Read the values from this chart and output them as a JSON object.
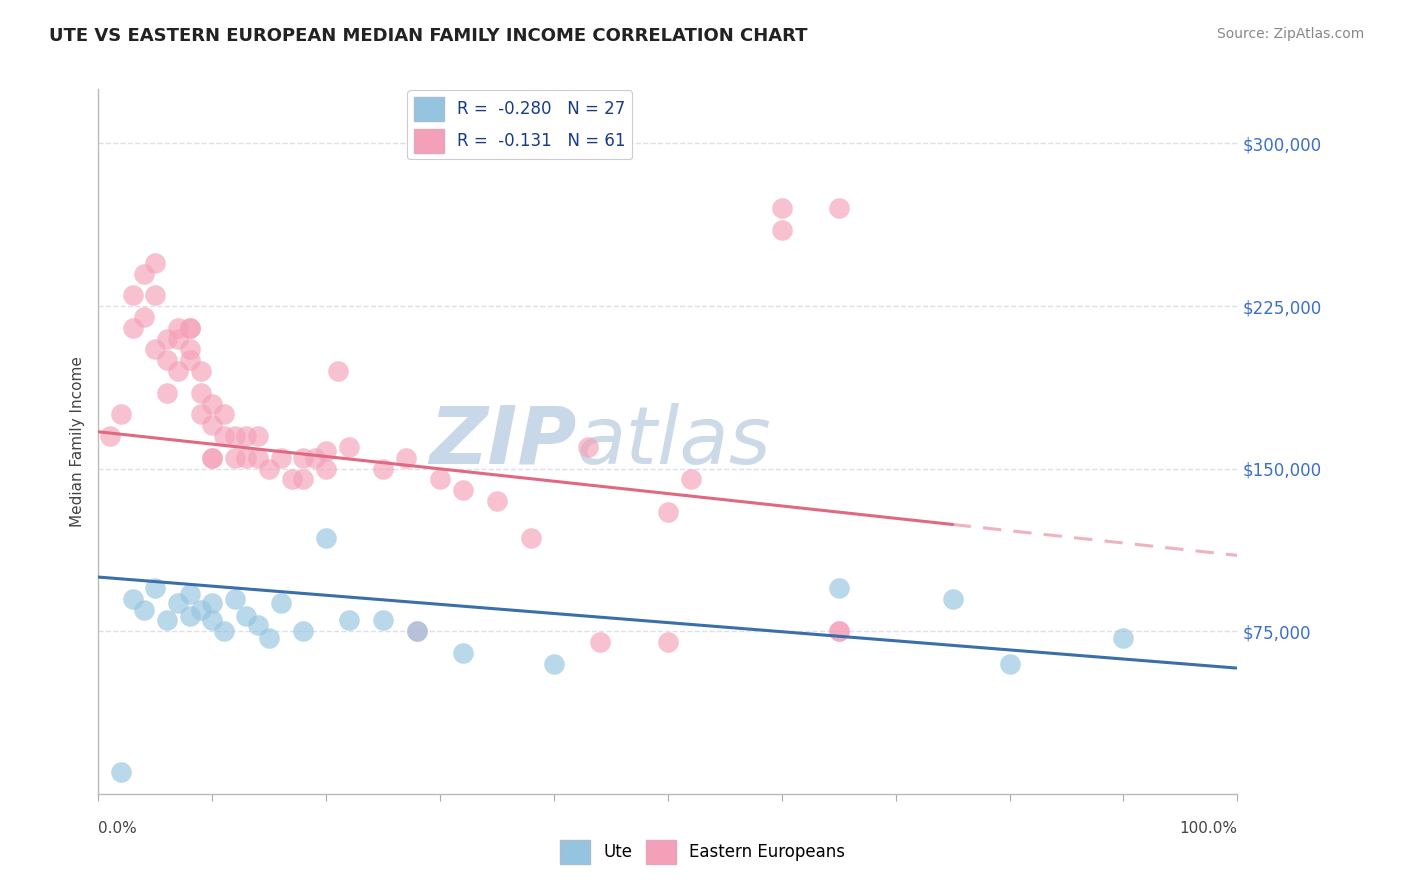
{
  "title": "UTE VS EASTERN EUROPEAN MEDIAN FAMILY INCOME CORRELATION CHART",
  "source": "Source: ZipAtlas.com",
  "ylabel": "Median Family Income",
  "yticks": [
    75000,
    150000,
    225000,
    300000
  ],
  "ytick_labels": [
    "$75,000",
    "$150,000",
    "$225,000",
    "$300,000"
  ],
  "ylim": [
    0,
    325000
  ],
  "xlim": [
    0,
    100
  ],
  "ute_color": "#94c4e0",
  "ee_color": "#f4a0b8",
  "ute_line_color": "#3a6faa",
  "ee_line_color": "#e06880",
  "ute_scatter_x": [
    2,
    3,
    4,
    5,
    6,
    7,
    8,
    8,
    9,
    10,
    10,
    11,
    12,
    13,
    14,
    15,
    16,
    18,
    20,
    22,
    25,
    28,
    32,
    40,
    65,
    75,
    80,
    90
  ],
  "ute_scatter_y": [
    10000,
    90000,
    85000,
    95000,
    80000,
    88000,
    82000,
    92000,
    85000,
    88000,
    80000,
    75000,
    90000,
    82000,
    78000,
    72000,
    88000,
    75000,
    118000,
    80000,
    80000,
    75000,
    65000,
    60000,
    95000,
    90000,
    60000,
    72000
  ],
  "ee_scatter_x": [
    1,
    2,
    3,
    3,
    4,
    4,
    5,
    5,
    5,
    6,
    6,
    6,
    7,
    7,
    7,
    8,
    8,
    8,
    8,
    9,
    9,
    9,
    10,
    10,
    10,
    10,
    11,
    11,
    12,
    12,
    13,
    13,
    14,
    14,
    15,
    16,
    17,
    18,
    18,
    19,
    20,
    20,
    21,
    22,
    25,
    27,
    28,
    30,
    32,
    35,
    38,
    43,
    44,
    50,
    50,
    52,
    60,
    60,
    65,
    65,
    65
  ],
  "ee_scatter_y": [
    165000,
    175000,
    230000,
    215000,
    240000,
    220000,
    205000,
    230000,
    245000,
    185000,
    200000,
    210000,
    215000,
    195000,
    210000,
    200000,
    215000,
    205000,
    215000,
    185000,
    195000,
    175000,
    180000,
    170000,
    155000,
    155000,
    165000,
    175000,
    155000,
    165000,
    155000,
    165000,
    155000,
    165000,
    150000,
    155000,
    145000,
    155000,
    145000,
    155000,
    150000,
    158000,
    195000,
    160000,
    150000,
    155000,
    75000,
    145000,
    140000,
    135000,
    118000,
    160000,
    70000,
    130000,
    70000,
    145000,
    260000,
    270000,
    270000,
    75000,
    75000
  ],
  "ute_trend_x0": 0,
  "ute_trend_y0": 100000,
  "ute_trend_x1": 100,
  "ute_trend_y1": 58000,
  "ee_trend_x0": 0,
  "ee_trend_y0": 167000,
  "ee_trend_x1": 100,
  "ee_trend_y1": 110000,
  "ee_trend_solid_end": 75,
  "background_color": "#ffffff",
  "grid_color": "#dde0ea",
  "watermark_zip": "ZIP",
  "watermark_atlas": "atlas",
  "watermark_color": "#c8d8e8",
  "legend_text_color": "#1a3a8a",
  "ytick_color": "#3a6fcc"
}
